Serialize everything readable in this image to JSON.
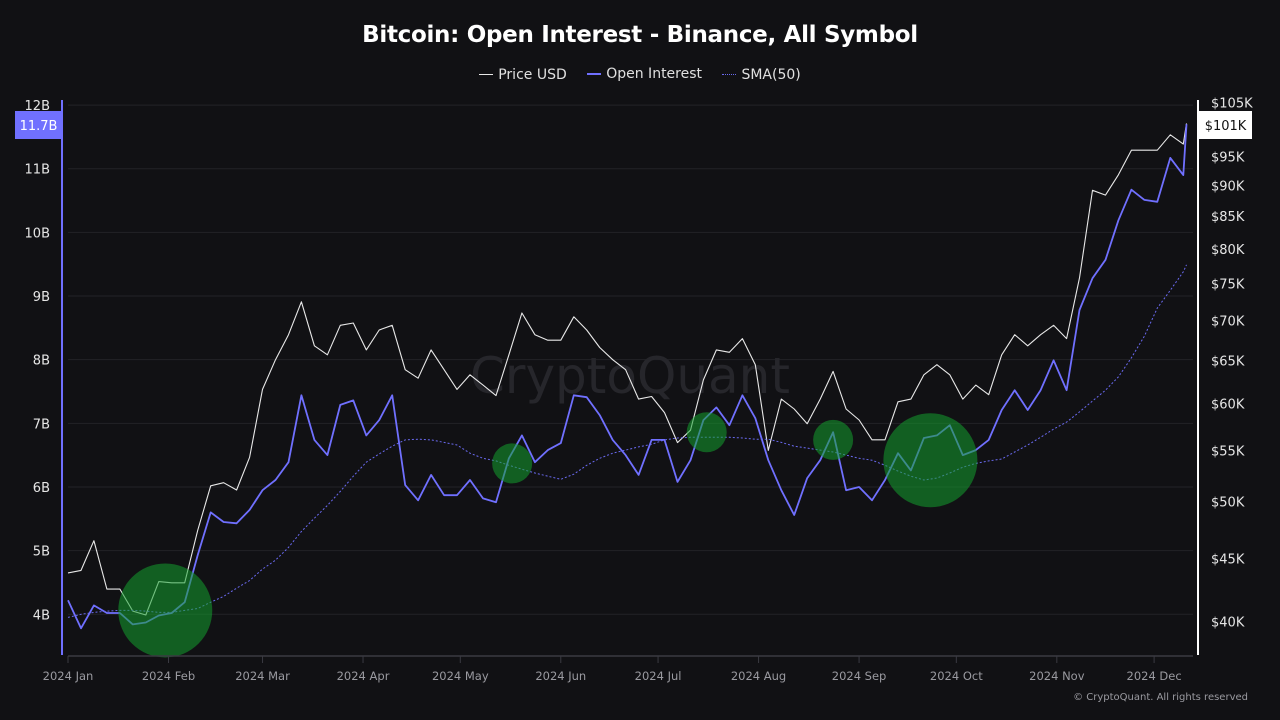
{
  "chart_data": {
    "type": "line",
    "title": "Bitcoin: Open Interest - Binance, All Symbol",
    "legend": {
      "placement": "top",
      "items": [
        {
          "label": "Price USD",
          "color": "#e8e8e8",
          "style": "solid"
        },
        {
          "label": "Open Interest",
          "color": "#7070ff",
          "style": "solid"
        },
        {
          "label": "SMA(50)",
          "color": "#6a6af0",
          "style": "dotted"
        }
      ]
    },
    "x": [
      "2024-01-01",
      "2024-01-05",
      "2024-01-09",
      "2024-01-13",
      "2024-01-17",
      "2024-01-21",
      "2024-01-25",
      "2024-01-29",
      "2024-02-02",
      "2024-02-06",
      "2024-02-10",
      "2024-02-14",
      "2024-02-18",
      "2024-02-22",
      "2024-02-26",
      "2024-03-01",
      "2024-03-05",
      "2024-03-09",
      "2024-03-13",
      "2024-03-17",
      "2024-03-21",
      "2024-03-25",
      "2024-03-29",
      "2024-04-02",
      "2024-04-06",
      "2024-04-10",
      "2024-04-14",
      "2024-04-18",
      "2024-04-22",
      "2024-04-26",
      "2024-04-30",
      "2024-05-04",
      "2024-05-08",
      "2024-05-12",
      "2024-05-16",
      "2024-05-20",
      "2024-05-24",
      "2024-05-28",
      "2024-06-01",
      "2024-06-05",
      "2024-06-09",
      "2024-06-13",
      "2024-06-17",
      "2024-06-21",
      "2024-06-25",
      "2024-06-29",
      "2024-07-03",
      "2024-07-07",
      "2024-07-11",
      "2024-07-15",
      "2024-07-19",
      "2024-07-23",
      "2024-07-27",
      "2024-07-31",
      "2024-08-04",
      "2024-08-08",
      "2024-08-12",
      "2024-08-16",
      "2024-08-20",
      "2024-08-24",
      "2024-08-28",
      "2024-09-01",
      "2024-09-05",
      "2024-09-09",
      "2024-09-13",
      "2024-09-17",
      "2024-09-21",
      "2024-09-25",
      "2024-09-29",
      "2024-10-03",
      "2024-10-07",
      "2024-10-11",
      "2024-10-15",
      "2024-10-19",
      "2024-10-23",
      "2024-10-27",
      "2024-10-31",
      "2024-11-04",
      "2024-11-08",
      "2024-11-12",
      "2024-11-16",
      "2024-11-20",
      "2024-11-24",
      "2024-11-28",
      "2024-12-02",
      "2024-12-06",
      "2024-12-10",
      "2024-12-11"
    ],
    "series": [
      {
        "name": "Price USD",
        "axis": "right",
        "unit": "USD thousands",
        "values": [
          43.8,
          44.0,
          46.5,
          42.5,
          42.5,
          40.8,
          40.5,
          43.1,
          43.0,
          43.0,
          47.4,
          51.5,
          51.8,
          51.1,
          54.3,
          61.6,
          65.1,
          68.2,
          72.5,
          66.8,
          65.7,
          69.4,
          69.7,
          66.3,
          68.8,
          69.4,
          63.9,
          62.9,
          66.3,
          63.9,
          61.6,
          63.3,
          62.1,
          60.9,
          65.7,
          71.0,
          68.2,
          67.5,
          67.5,
          70.5,
          68.8,
          66.6,
          65.1,
          63.9,
          60.5,
          60.8,
          59.0,
          55.8,
          57.1,
          62.7,
          66.3,
          66.0,
          67.7,
          64.5,
          55.0,
          60.5,
          59.4,
          57.8,
          60.5,
          63.7,
          59.4,
          58.2,
          56.1,
          56.1,
          60.2,
          60.5,
          63.3,
          64.5,
          63.3,
          60.5,
          62.1,
          61.0,
          65.7,
          68.2,
          66.8,
          68.2,
          69.4,
          67.7,
          75.8,
          89.2,
          88.4,
          91.8,
          96.1,
          96.1,
          96.1,
          98.9,
          97.2,
          101.0
        ]
      },
      {
        "name": "Open Interest",
        "axis": "left",
        "unit": "USD billions",
        "values": [
          4.22,
          3.78,
          4.14,
          4.02,
          4.02,
          3.84,
          3.87,
          3.98,
          4.02,
          4.19,
          4.93,
          5.6,
          5.45,
          5.43,
          5.64,
          5.95,
          6.11,
          6.39,
          7.44,
          6.74,
          6.5,
          7.29,
          7.36,
          6.81,
          7.05,
          7.44,
          6.03,
          5.79,
          6.19,
          5.87,
          5.87,
          6.11,
          5.82,
          5.76,
          6.45,
          6.81,
          6.39,
          6.58,
          6.69,
          7.44,
          7.41,
          7.13,
          6.74,
          6.5,
          6.19,
          6.74,
          6.74,
          6.08,
          6.42,
          7.05,
          7.25,
          6.97,
          7.44,
          7.08,
          6.42,
          5.95,
          5.56,
          6.14,
          6.42,
          6.86,
          5.95,
          6.0,
          5.79,
          6.11,
          6.53,
          6.26,
          6.77,
          6.81,
          6.97,
          6.5,
          6.58,
          6.74,
          7.21,
          7.52,
          7.21,
          7.52,
          7.99,
          7.52,
          8.78,
          9.28,
          9.57,
          10.19,
          10.67,
          10.51,
          10.48,
          11.17,
          10.9,
          11.7
        ]
      },
      {
        "name": "SMA(50)",
        "axis": "left",
        "unit": "USD billions",
        "values": [
          3.95,
          4.0,
          4.03,
          4.05,
          4.06,
          4.06,
          4.05,
          4.03,
          4.03,
          4.06,
          4.09,
          4.19,
          4.28,
          4.41,
          4.53,
          4.71,
          4.85,
          5.05,
          5.3,
          5.51,
          5.71,
          5.93,
          6.17,
          6.39,
          6.52,
          6.64,
          6.74,
          6.75,
          6.74,
          6.7,
          6.66,
          6.53,
          6.45,
          6.41,
          6.34,
          6.28,
          6.22,
          6.17,
          6.12,
          6.2,
          6.34,
          6.45,
          6.53,
          6.58,
          6.63,
          6.67,
          6.74,
          6.77,
          6.78,
          6.78,
          6.78,
          6.78,
          6.77,
          6.75,
          6.75,
          6.7,
          6.64,
          6.61,
          6.58,
          6.55,
          6.5,
          6.45,
          6.42,
          6.34,
          6.25,
          6.17,
          6.11,
          6.14,
          6.22,
          6.31,
          6.37,
          6.41,
          6.44,
          6.55,
          6.66,
          6.78,
          6.91,
          7.02,
          7.18,
          7.35,
          7.52,
          7.73,
          8.03,
          8.37,
          8.81,
          9.09,
          9.38,
          9.49
        ]
      }
    ],
    "xlim": [
      "2024-01-01",
      "2024-12-13"
    ],
    "x_ticks": [
      {
        "date": "2024-01-01",
        "label": "2024 Jan"
      },
      {
        "date": "2024-02-01",
        "label": "2024 Feb"
      },
      {
        "date": "2024-03-01",
        "label": "2024 Mar"
      },
      {
        "date": "2024-04-01",
        "label": "2024 Apr"
      },
      {
        "date": "2024-05-01",
        "label": "2024 May"
      },
      {
        "date": "2024-06-01",
        "label": "2024 Jun"
      },
      {
        "date": "2024-07-01",
        "label": "2024 Jul"
      },
      {
        "date": "2024-08-01",
        "label": "2024 Aug"
      },
      {
        "date": "2024-09-01",
        "label": "2024 Sep"
      },
      {
        "date": "2024-10-01",
        "label": "2024 Oct"
      },
      {
        "date": "2024-11-01",
        "label": "2024 Nov"
      },
      {
        "date": "2024-12-01",
        "label": "2024 Dec"
      }
    ],
    "y_left": {
      "scale": "linear",
      "ylim": [
        3.36,
        12.08
      ],
      "ticks": [
        {
          "v": 4,
          "label": "4B"
        },
        {
          "v": 5,
          "label": "5B"
        },
        {
          "v": 6,
          "label": "6B"
        },
        {
          "v": 7,
          "label": "7B"
        },
        {
          "v": 8,
          "label": "8B"
        },
        {
          "v": 9,
          "label": "9B"
        },
        {
          "v": 10,
          "label": "10B"
        },
        {
          "v": 11,
          "label": "11B"
        },
        {
          "v": 12,
          "label": "12B"
        }
      ],
      "current_value_label": "11.7B",
      "color": "#7070ff"
    },
    "y_right": {
      "scale": "log",
      "ylim": [
        37.6,
        105.5
      ],
      "ticks": [
        {
          "v": 40,
          "label": "$40K"
        },
        {
          "v": 45,
          "label": "$45K"
        },
        {
          "v": 50,
          "label": "$50K"
        },
        {
          "v": 55,
          "label": "$55K"
        },
        {
          "v": 60,
          "label": "$60K"
        },
        {
          "v": 65,
          "label": "$65K"
        },
        {
          "v": 70,
          "label": "$70K"
        },
        {
          "v": 75,
          "label": "$75K"
        },
        {
          "v": 80,
          "label": "$80K"
        },
        {
          "v": 85,
          "label": "$85K"
        },
        {
          "v": 90,
          "label": "$90K"
        },
        {
          "v": 95,
          "label": "$95K"
        },
        {
          "v": 105,
          "label": "$105K"
        }
      ],
      "current_value_label": "$101K",
      "color": "#ffffff"
    },
    "grid": {
      "horizontal": true,
      "vertical": false
    },
    "annotations": [
      {
        "type": "highlight-circle",
        "date": "2024-01-31",
        "value": 4.06,
        "size": "large",
        "color": "#14a02e"
      },
      {
        "type": "highlight-circle",
        "date": "2024-05-17",
        "value": 6.37,
        "size": "small",
        "color": "#14a02e"
      },
      {
        "type": "highlight-circle",
        "date": "2024-07-16",
        "value": 6.86,
        "size": "small",
        "color": "#14a02e"
      },
      {
        "type": "highlight-circle",
        "date": "2024-08-24",
        "value": 6.74,
        "size": "small",
        "color": "#14a02e"
      },
      {
        "type": "highlight-circle",
        "date": "2024-09-23",
        "value": 6.42,
        "size": "large",
        "color": "#14a02e"
      }
    ],
    "watermark": "CryptoQuant"
  },
  "footer": {
    "copyright": "© CryptoQuant. All rights reserved"
  },
  "colors": {
    "background": "#111114",
    "grid": "#232327",
    "price": "#e8e8e8",
    "open_interest": "#7070ff",
    "sma": "#6a6af0"
  }
}
